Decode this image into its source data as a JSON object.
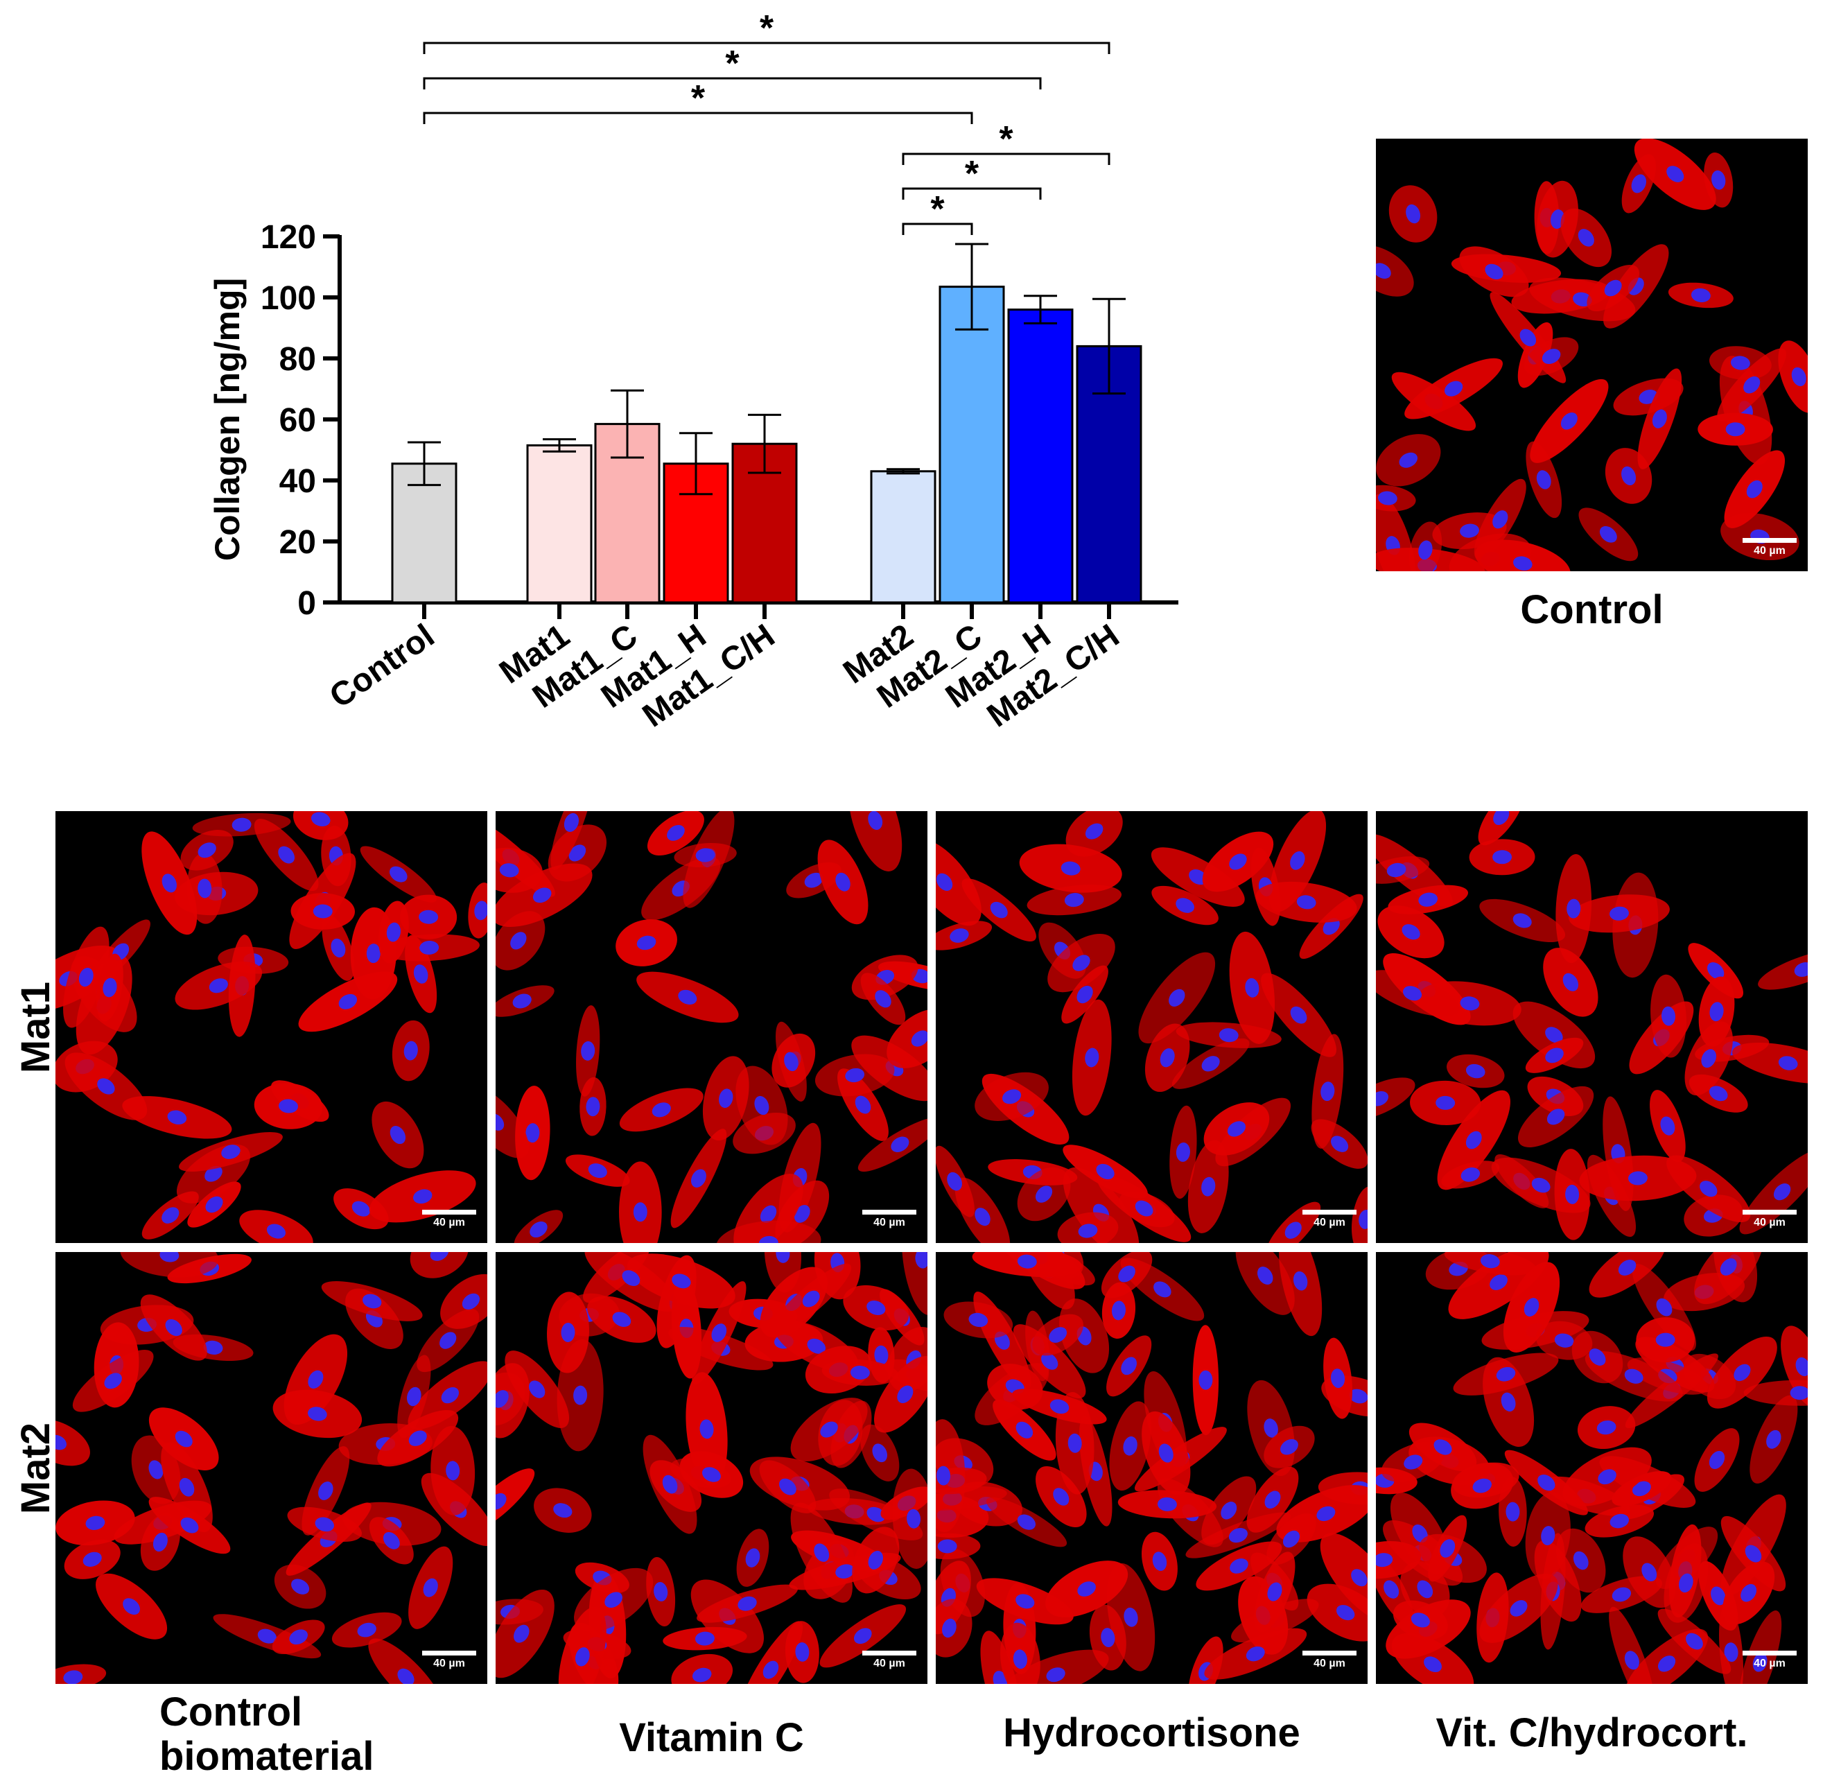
{
  "chart_data": {
    "type": "bar",
    "ylabel": "Collagen [ng/mg]",
    "ylim": [
      0,
      120
    ],
    "yticks": [
      "0",
      "20",
      "40",
      "60",
      "80",
      "100",
      "120"
    ],
    "categories": [
      "Control",
      "Mat1",
      "Mat1_C",
      "Mat1_H",
      "Mat1_C/H",
      "Mat2",
      "Mat2_C",
      "Mat2_H",
      "Mat2_C/H"
    ],
    "values": [
      45.5,
      51.5,
      58.5,
      45.5,
      52,
      43,
      103.5,
      96,
      84
    ],
    "errors": [
      7,
      2,
      11,
      10,
      9.5,
      0.7,
      14,
      4.5,
      15.5
    ],
    "colors": [
      "#d9d9d9",
      "#fde4e4",
      "#fbb3b3",
      "#ff0000",
      "#c00000",
      "#d6e4fb",
      "#5fb0ff",
      "#0000ff",
      "#0000a8"
    ],
    "grid": false,
    "significance": [
      {
        "from": "Control",
        "to": "Mat2_C/H",
        "label": "*"
      },
      {
        "from": "Control",
        "to": "Mat2_H",
        "label": "*"
      },
      {
        "from": "Control",
        "to": "Mat2_C",
        "label": "*"
      },
      {
        "from": "Mat2",
        "to": "Mat2_C/H",
        "label": "*"
      },
      {
        "from": "Mat2",
        "to": "Mat2_H",
        "label": "*"
      },
      {
        "from": "Mat2",
        "to": "Mat2_C",
        "label": "*"
      }
    ]
  },
  "images": {
    "top_caption": "Control",
    "row_labels": [
      "Mat1",
      "Mat2"
    ],
    "column_captions": [
      "Control\nbiomaterial",
      "Vitamin C",
      "Hydrocortisone",
      "Vit. C/hydrocort."
    ],
    "scale_bar": "40 µm",
    "stain_colors": {
      "cytoplasm": "#e00000",
      "nucleus": "#3a28e8",
      "background": "#000000"
    }
  }
}
